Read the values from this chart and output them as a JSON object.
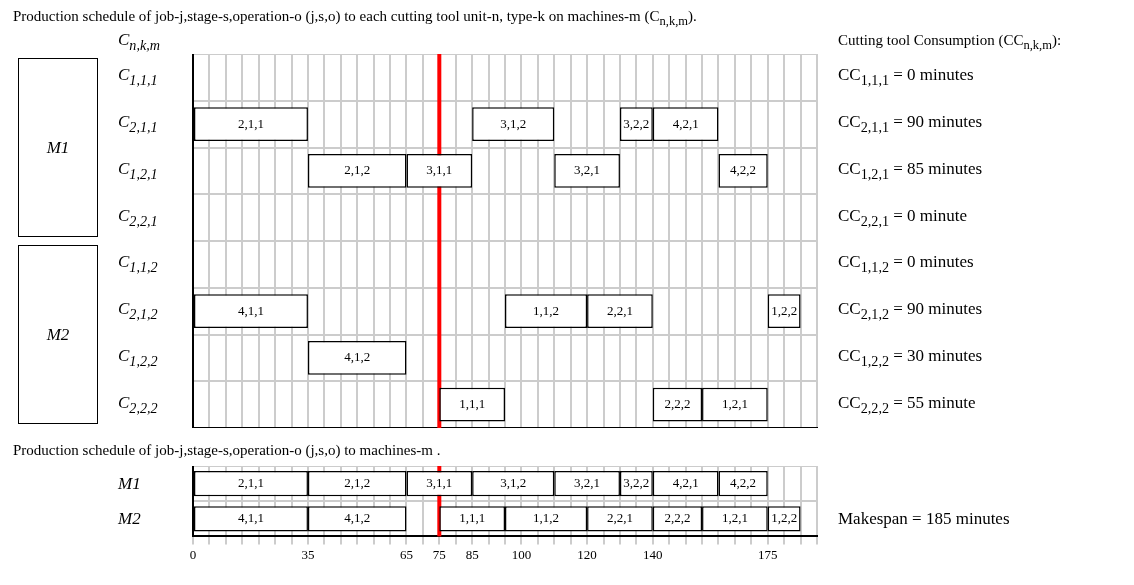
{
  "chart_data": [
    {
      "type": "bar",
      "orientation": "horizontal",
      "title": "Production schedule of job-j,stage-s,operation-o (j,s,o) to each cutting tool unit-n, type-k on machines-m (C$_{n,k,m}$).",
      "ylabel": "C$_{n,k,m}$",
      "categories": [
        "C$_{1,1,1}$",
        "C$_{2,1,1}$",
        "C$_{1,2,1}$",
        "C$_{2,2,1}$",
        "C$_{1,1,2}$",
        "C$_{2,1,2}$",
        "C$_{1,2,2}$",
        "C$_{2,2,2}$"
      ],
      "series": [
        {
          "color": "#ffffff",
          "values": [
            null,
            35,
            30,
            null,
            null,
            35,
            30,
            20
          ],
          "base": [
            null,
            0,
            35,
            null,
            null,
            0,
            35,
            75
          ],
          "value_labels": [
            null,
            "2,1,1",
            "2,1,2",
            null,
            null,
            "4,1,1",
            "4,1,2",
            "1,1,1"
          ]
        },
        {
          "color": "#ffffff",
          "values": [
            null,
            25,
            20,
            null,
            null,
            25,
            null,
            15
          ],
          "base": [
            null,
            85,
            65,
            null,
            null,
            95,
            null,
            140
          ],
          "value_labels": [
            null,
            "3,1,2",
            "3,1,1",
            null,
            null,
            "1,1,2",
            null,
            "2,2,2"
          ]
        },
        {
          "color": "#ffffff",
          "values": [
            null,
            10,
            20,
            null,
            null,
            20,
            null,
            20
          ],
          "base": [
            null,
            130,
            110,
            null,
            null,
            120,
            null,
            155
          ],
          "value_labels": [
            null,
            "3,2,2",
            "3,2,1",
            null,
            null,
            "2,2,1",
            null,
            "1,2,1"
          ]
        },
        {
          "color": "#ffffff",
          "values": [
            null,
            20,
            15,
            null,
            null,
            10,
            null,
            null
          ],
          "base": [
            null,
            140,
            160,
            null,
            null,
            175,
            null,
            null
          ],
          "value_labels": [
            null,
            "4,2,1",
            "4,2,2",
            null,
            null,
            "1,2,2",
            null,
            null
          ]
        }
      ],
      "xlim": [
        0,
        190
      ],
      "xticks": [
        0,
        {
          "value": 5,
          "label": null
        },
        {
          "value": 10,
          "label": null
        },
        {
          "value": 15,
          "label": null
        },
        {
          "value": 20,
          "label": null
        },
        {
          "value": 25,
          "label": null
        },
        {
          "value": 30,
          "label": null
        },
        35,
        {
          "value": 40,
          "label": null
        },
        {
          "value": 45,
          "label": null
        },
        {
          "value": 50,
          "label": null
        },
        {
          "value": 55,
          "label": null
        },
        {
          "value": 60,
          "label": null
        },
        65,
        {
          "value": 70,
          "label": null
        },
        75,
        {
          "value": 80,
          "label": null
        },
        85,
        {
          "value": 90,
          "label": null
        },
        {
          "value": 95,
          "label": null
        },
        100,
        {
          "value": 105,
          "label": null
        },
        {
          "value": 110,
          "label": null
        },
        {
          "value": 115,
          "label": null
        },
        120,
        {
          "value": 125,
          "label": null
        },
        {
          "value": 130,
          "label": null
        },
        {
          "value": 135,
          "label": null
        },
        140,
        {
          "value": 145,
          "label": null
        },
        {
          "value": 150,
          "label": null
        },
        {
          "value": 155,
          "label": null
        },
        {
          "value": 160,
          "label": null
        },
        {
          "value": 165,
          "label": null
        },
        {
          "value": 170,
          "label": null
        },
        175,
        {
          "value": 180,
          "label": null
        },
        {
          "value": 185,
          "label": null
        },
        {
          "value": 190,
          "label": null
        }
      ],
      "tick_labels": "y",
      "grid": true,
      "legend": false,
      "ref_lines": [
        {
          "axis": "x",
          "value": 75,
          "label": null,
          "color": "#ff0000"
        }
      ],
      "annotations": [
        "Cutting tool Consumption (CC$_{n,k,m}$):",
        "CC$_{1,1,1}$ = 0 minutes",
        "CC$_{2,1,1}$ = 90 minutes",
        "CC$_{1,2,1}$ = 85 minutes",
        "CC$_{2,2,1}$ = 0 minute",
        "CC$_{1,1,2}$ = 0 minutes",
        "CC$_{2,1,2}$ = 90 minutes",
        "CC$_{1,2,2}$ = 30 minutes",
        "CC$_{2,2,2}$ = 55 minute",
        "M1",
        "M2"
      ]
    },
    {
      "type": "bar",
      "orientation": "horizontal",
      "title": "Production schedule of job-j,stage-s,operation-o (j,s,o) to machines-m .",
      "categories": [
        "M1",
        "M2"
      ],
      "series": [
        {
          "color": "#ffffff",
          "values": [
            35,
            35
          ],
          "base": [
            0,
            0
          ],
          "value_labels": [
            "2,1,1",
            "4,1,1"
          ]
        },
        {
          "color": "#ffffff",
          "values": [
            30,
            30
          ],
          "base": [
            35,
            35
          ],
          "value_labels": [
            "2,1,2",
            "4,1,2"
          ]
        },
        {
          "color": "#ffffff",
          "values": [
            20,
            20
          ],
          "base": [
            65,
            75
          ],
          "value_labels": [
            "3,1,1",
            "1,1,1"
          ]
        },
        {
          "color": "#ffffff",
          "values": [
            25,
            25
          ],
          "base": [
            85,
            95
          ],
          "value_labels": [
            "3,1,2",
            "1,1,2"
          ]
        },
        {
          "color": "#ffffff",
          "values": [
            20,
            20
          ],
          "base": [
            110,
            120
          ],
          "value_labels": [
            "3,2,1",
            "2,2,1"
          ]
        },
        {
          "color": "#ffffff",
          "values": [
            10,
            15
          ],
          "base": [
            130,
            140
          ],
          "value_labels": [
            "3,2,2",
            "2,2,2"
          ]
        },
        {
          "color": "#ffffff",
          "values": [
            20,
            20
          ],
          "base": [
            140,
            155
          ],
          "value_labels": [
            "4,2,1",
            "1,2,1"
          ]
        },
        {
          "color": "#ffffff",
          "values": [
            15,
            10
          ],
          "base": [
            160,
            175
          ],
          "value_labels": [
            "4,2,2",
            "1,2,2"
          ]
        }
      ],
      "xlim": [
        0,
        190
      ],
      "xticks": [
        0,
        {
          "value": 5,
          "label": null
        },
        {
          "value": 10,
          "label": null
        },
        {
          "value": 15,
          "label": null
        },
        {
          "value": 20,
          "label": null
        },
        {
          "value": 25,
          "label": null
        },
        {
          "value": 30,
          "label": null
        },
        35,
        {
          "value": 40,
          "label": null
        },
        {
          "value": 45,
          "label": null
        },
        {
          "value": 50,
          "label": null
        },
        {
          "value": 55,
          "label": null
        },
        {
          "value": 60,
          "label": null
        },
        65,
        {
          "value": 70,
          "label": null
        },
        75,
        {
          "value": 80,
          "label": null
        },
        85,
        {
          "value": 90,
          "label": null
        },
        {
          "value": 95,
          "label": null
        },
        100,
        {
          "value": 105,
          "label": null
        },
        {
          "value": 110,
          "label": null
        },
        {
          "value": 115,
          "label": null
        },
        120,
        {
          "value": 125,
          "label": null
        },
        {
          "value": 130,
          "label": null
        },
        {
          "value": 135,
          "label": null
        },
        140,
        {
          "value": 145,
          "label": null
        },
        {
          "value": 150,
          "label": null
        },
        {
          "value": 155,
          "label": null
        },
        {
          "value": 160,
          "label": null
        },
        {
          "value": 165,
          "label": null
        },
        {
          "value": 170,
          "label": null
        },
        175,
        {
          "value": 180,
          "label": null
        },
        {
          "value": 185,
          "label": null
        },
        {
          "value": 190,
          "label": null
        }
      ],
      "grid": true,
      "legend": false,
      "ref_lines": [
        {
          "axis": "x",
          "value": 75,
          "label": null,
          "color": "#ff0000"
        }
      ],
      "annotations": [
        "Makespan = 185 minutes"
      ]
    }
  ]
}
